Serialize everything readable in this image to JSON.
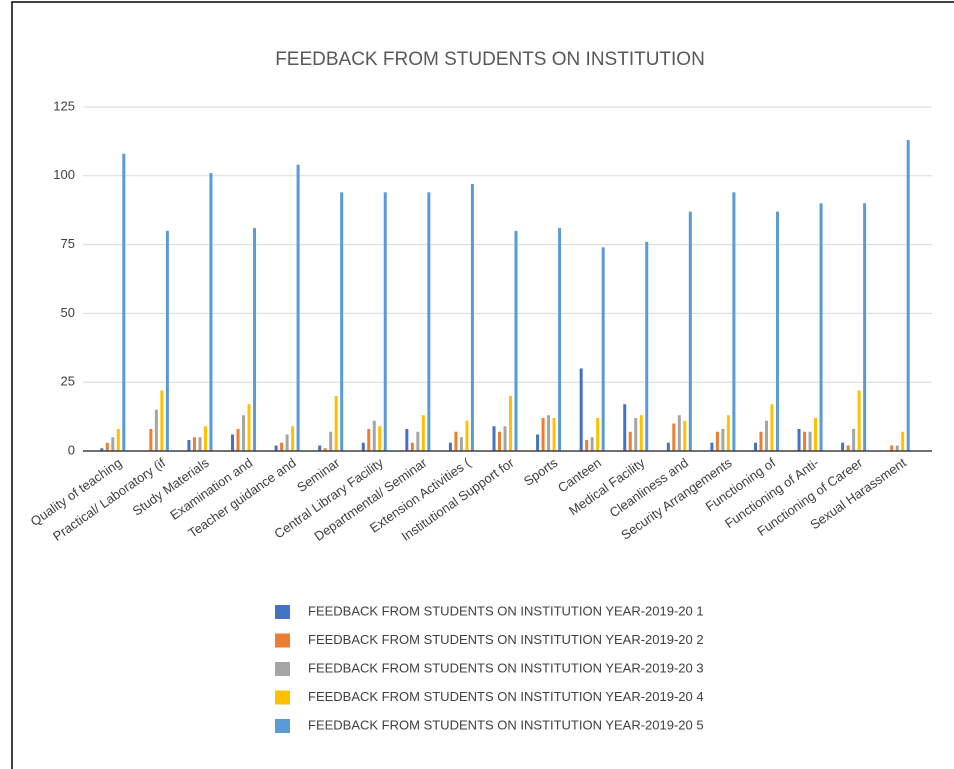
{
  "chart_data": {
    "type": "bar",
    "title": "FEEDBACK FROM STUDENTS ON INSTITUTION",
    "categories": [
      "Quality of teaching",
      "Practical/ Laboratory (if",
      "Study Materials",
      "Examination and",
      "Teacher guidance and",
      "Seminar",
      "Central Library Facility",
      "Departmental/ Seminar",
      "Extension Activities  (",
      "Institutional Support for",
      "Sports",
      "Canteen",
      "Medical Facility",
      "Cleanliness and",
      "Security Arrangements",
      "Functioning of",
      "Functioning of Anti-",
      "Functioning of Career",
      "Sexual Harassment"
    ],
    "series": [
      {
        "name": "FEEDBACK FROM STUDENTS ON INSTITUTION YEAR-2019-20 1",
        "color": "#4472c4",
        "values": [
          1,
          0,
          4,
          6,
          2,
          2,
          3,
          8,
          3,
          9,
          6,
          30,
          17,
          3,
          3,
          3,
          8,
          3,
          0
        ]
      },
      {
        "name": "FEEDBACK FROM STUDENTS ON INSTITUTION YEAR-2019-20 2",
        "color": "#ed7d31",
        "values": [
          3,
          8,
          5,
          8,
          3,
          1,
          8,
          3,
          7,
          7,
          12,
          4,
          7,
          10,
          7,
          7,
          7,
          2,
          2
        ]
      },
      {
        "name": "FEEDBACK FROM STUDENTS ON INSTITUTION YEAR-2019-20 3",
        "color": "#a5a5a5",
        "values": [
          5,
          15,
          5,
          13,
          6,
          7,
          11,
          7,
          5,
          9,
          13,
          5,
          12,
          13,
          8,
          11,
          7,
          8,
          2
        ]
      },
      {
        "name": "FEEDBACK FROM STUDENTS ON INSTITUTION YEAR-2019-20 4",
        "color": "#ffc000",
        "values": [
          8,
          22,
          9,
          17,
          9,
          20,
          9,
          13,
          11,
          20,
          12,
          12,
          13,
          11,
          13,
          17,
          12,
          22,
          7
        ]
      },
      {
        "name": "FEEDBACK FROM STUDENTS ON INSTITUTION YEAR-2019-20 5",
        "color": "#5b9bd5",
        "values": [
          108,
          80,
          101,
          81,
          104,
          94,
          94,
          94,
          97,
          80,
          81,
          74,
          76,
          87,
          94,
          87,
          90,
          90,
          113
        ]
      }
    ],
    "ylim": [
      0,
      125
    ],
    "yticks": [
      0,
      25,
      50,
      75,
      100,
      125
    ],
    "grid": true,
    "legend": "bottom"
  }
}
